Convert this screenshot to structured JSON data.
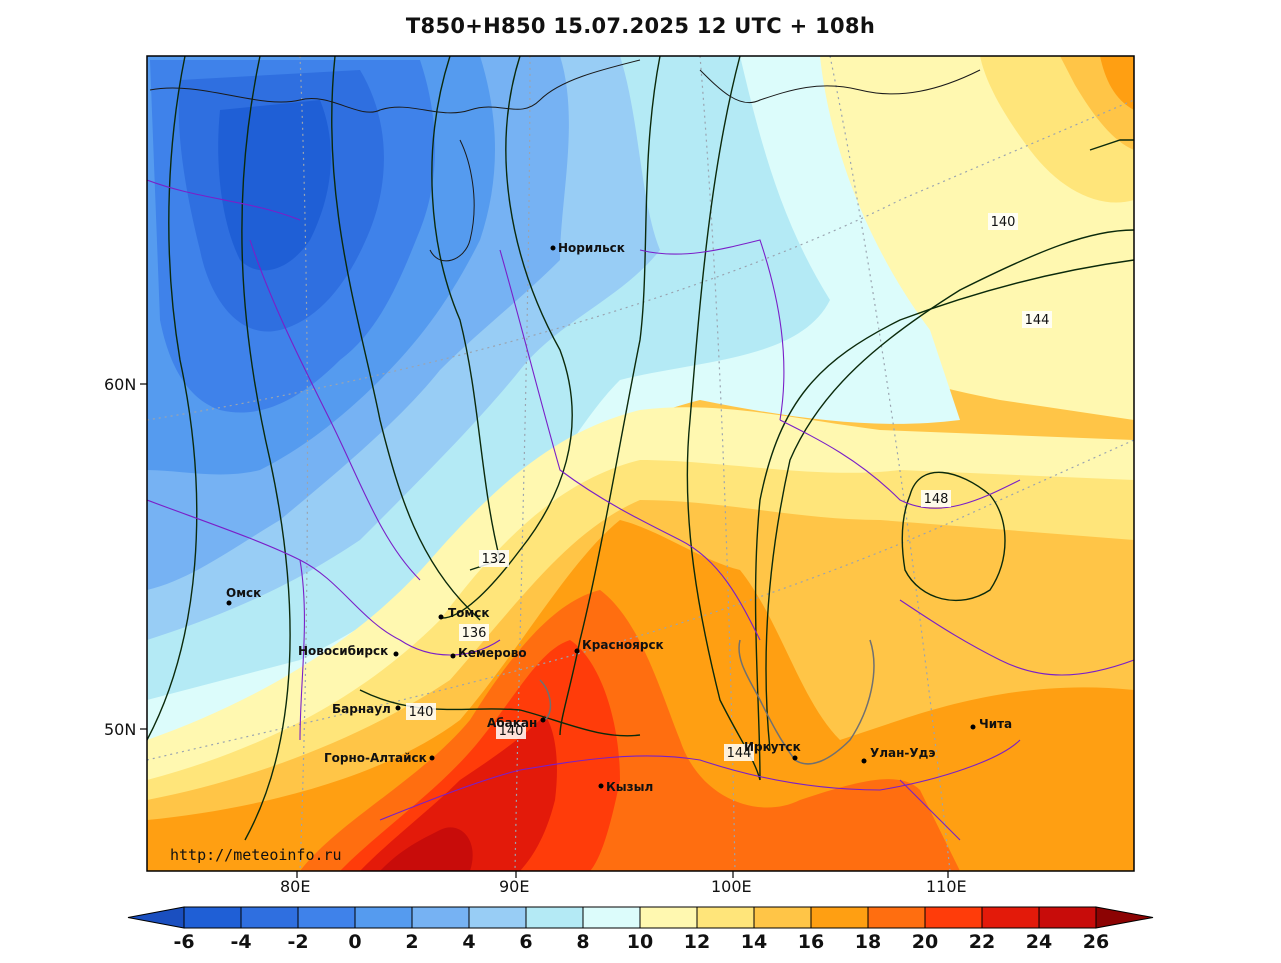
{
  "title": "T850+H850 15.07.2025 12 UTC + 108h",
  "watermark": "http://meteoinfo.ru",
  "lat_labels": [
    "60N",
    "50N"
  ],
  "lon_labels": [
    "80E",
    "90E",
    "100E",
    "110E"
  ],
  "cities": [
    {
      "name": "Норильск"
    },
    {
      "name": "Омск"
    },
    {
      "name": "Томск"
    },
    {
      "name": "Новосибирск"
    },
    {
      "name": "Кемерово"
    },
    {
      "name": "Красноярск"
    },
    {
      "name": "Барнаул"
    },
    {
      "name": "Абакан"
    },
    {
      "name": "Горно-Алтайск"
    },
    {
      "name": "Кызыл"
    },
    {
      "name": "Иркутск"
    },
    {
      "name": "Улан-Удэ"
    },
    {
      "name": "Чита"
    }
  ],
  "contour_labels": [
    "132",
    "136",
    "140",
    "140",
    "144",
    "148",
    "140",
    "144"
  ],
  "colorbar": {
    "ticks": [
      "-6",
      "-4",
      "-2",
      "0",
      "2",
      "4",
      "6",
      "8",
      "10",
      "12",
      "14",
      "16",
      "18",
      "20",
      "22",
      "24",
      "26"
    ],
    "colors": [
      "#1f5fd6",
      "#2f6fe0",
      "#3f82ea",
      "#559bef",
      "#76b2f3",
      "#98cdf5",
      "#b4eaf5",
      "#dcfcfb",
      "#fff8b0",
      "#ffe57a",
      "#ffc547",
      "#ff9f12",
      "#ff6e10",
      "#ff3c0a",
      "#e31a0a",
      "#c80c0a",
      "#aa0606"
    ],
    "low_color": "#1a4fc0",
    "high_color": "#8c0303"
  }
}
